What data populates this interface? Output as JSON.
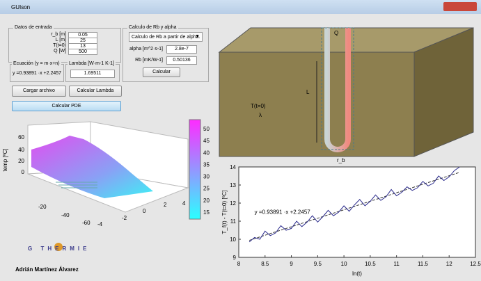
{
  "window": {
    "title": "GUIson"
  },
  "datos_entrada": {
    "title": "Datos de entrada",
    "fields": [
      {
        "label": "r_b [m]",
        "value": "0.05"
      },
      {
        "label": "L [m]",
        "value": "25"
      },
      {
        "label": "T(t=0)",
        "value": "13"
      },
      {
        "label": "Q [W]",
        "value": "500"
      }
    ]
  },
  "ecuacion": {
    "title": "Ecuación (y = m·x+n)",
    "value": "y =0.93891 ·x +2.2457"
  },
  "lambda": {
    "title": "Lambda [W·m-1 K-1]",
    "value": "1.69511"
  },
  "buttons": {
    "cargar": "Cargar archivo",
    "calcular_lambda": "Calcular Lambda",
    "calcular_pde": "Calcular PDE"
  },
  "calculo": {
    "title": "Calculo de Rb y alpha",
    "dropdown": "Calculo de Rb a partir de alpha.",
    "alpha_label": "alpha [m^2·s-1]",
    "alpha_value": "2.8e-7",
    "rb_label": "Rb [mK/W-1]",
    "rb_value": "0.50136",
    "button": "Calcular"
  },
  "diagram": {
    "q": "Q",
    "l": "L",
    "t0": "T(t=0)",
    "lambda": "λ",
    "rb": "r_b"
  },
  "plot3d": {
    "zlabel": "temp [ºC]",
    "zticks": [
      0,
      20,
      40,
      60
    ],
    "xticks": [
      -20,
      -40,
      -60
    ],
    "yticks": [
      -4,
      -2,
      0,
      2,
      4
    ],
    "colorbar_ticks": [
      15,
      20,
      25,
      30,
      35,
      40,
      45,
      50
    ]
  },
  "logo": {
    "name": "G THERMIE",
    "author": "Adrián Martínez Álvarez"
  },
  "fit_plot": {
    "xlabel": "ln(t)",
    "ylabel": "T_f(t) - T(t=0) [ºC]",
    "annotation": "y =0.93891 ·x +2.2457",
    "xlim": [
      8,
      12.5
    ],
    "ylim": [
      9,
      14
    ],
    "xticks": [
      8,
      8.5,
      9,
      9.5,
      10,
      10.5,
      11,
      11.5,
      12,
      12.5
    ],
    "yticks": [
      9,
      10,
      11,
      12,
      13,
      14
    ],
    "measured": {
      "color": "#2a2a8c",
      "x": [
        8.2,
        8.3,
        8.4,
        8.5,
        8.6,
        8.7,
        8.8,
        8.9,
        9.0,
        9.1,
        9.2,
        9.3,
        9.4,
        9.5,
        9.6,
        9.7,
        9.8,
        9.9,
        10.0,
        10.1,
        10.2,
        10.3,
        10.4,
        10.5,
        10.6,
        10.7,
        10.8,
        10.9,
        11.0,
        11.1,
        11.2,
        11.3,
        11.4,
        11.5,
        11.6,
        11.7,
        11.8,
        11.9,
        12.0,
        12.1,
        12.2
      ],
      "y": [
        9.85,
        10.1,
        10.0,
        10.45,
        10.2,
        10.35,
        10.75,
        10.5,
        10.6,
        11.0,
        10.7,
        10.95,
        11.3,
        10.95,
        11.25,
        11.6,
        11.3,
        11.5,
        11.85,
        11.55,
        11.9,
        12.2,
        11.85,
        12.1,
        12.45,
        12.15,
        12.35,
        12.75,
        12.4,
        12.6,
        12.9,
        12.7,
        12.85,
        13.2,
        12.95,
        13.1,
        13.5,
        13.25,
        13.45,
        13.8,
        14.0
      ]
    },
    "fit": {
      "color": "#333333",
      "x": [
        8.2,
        12.2
      ],
      "y": [
        9.94,
        13.7
      ]
    }
  }
}
